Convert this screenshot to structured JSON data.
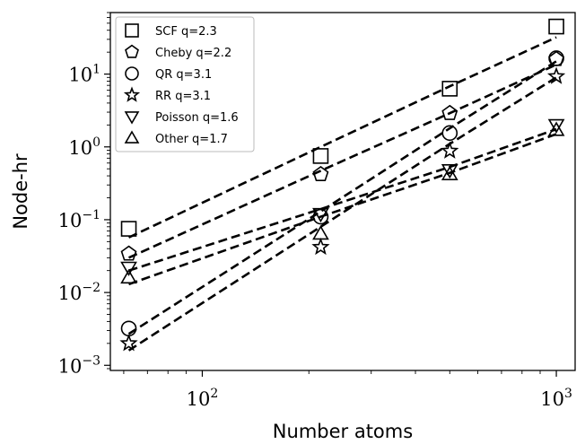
{
  "chart_data": {
    "type": "line",
    "xlabel": "Number atoms",
    "ylabel": "Node-hr",
    "xscale": "log",
    "yscale": "log",
    "xlim": [
      55,
      1130
    ],
    "ylim": [
      0.00085,
      70
    ],
    "xticks": [
      {
        "value": 100,
        "base": "10",
        "exp": "2"
      },
      {
        "value": 1000,
        "base": "10",
        "exp": "3"
      }
    ],
    "yticks": [
      {
        "value": 0.001,
        "base": "10",
        "exp": "−3"
      },
      {
        "value": 0.01,
        "base": "10",
        "exp": "−2"
      },
      {
        "value": 0.1,
        "base": "10",
        "exp": "−1"
      },
      {
        "value": 1,
        "base": "10",
        "exp": "0"
      },
      {
        "value": 10,
        "base": "10",
        "exp": "1"
      }
    ],
    "grid": false,
    "legend": "top-left",
    "line_style": "dashed",
    "x": [
      62,
      216,
      500,
      1000
    ],
    "series": [
      {
        "name": "SCF q=2.3",
        "marker": "square",
        "values": [
          0.075,
          0.75,
          6.3,
          45
        ],
        "fit": [
          0.057,
          1.0,
          6.8,
          32
        ]
      },
      {
        "name": "Cheby q=2.2",
        "marker": "pentagon",
        "values": [
          0.034,
          0.42,
          2.9,
          16
        ],
        "fit": [
          0.03,
          0.47,
          2.9,
          13.5
        ]
      },
      {
        "name": "QR q=3.1",
        "marker": "circle",
        "values": [
          0.0032,
          0.11,
          1.55,
          16.5
        ],
        "fit": [
          0.0027,
          0.13,
          1.8,
          15.0
        ]
      },
      {
        "name": "RR q=3.1",
        "marker": "star",
        "values": [
          0.002,
          0.042,
          0.88,
          9.3
        ],
        "fit": [
          0.0016,
          0.08,
          1.1,
          9.0
        ]
      },
      {
        "name": "Poisson q=1.6",
        "marker": "triangle-down",
        "values": [
          0.022,
          0.12,
          0.48,
          2.0
        ],
        "fit": [
          0.02,
          0.14,
          0.53,
          1.75
        ]
      },
      {
        "name": "Other q=1.7",
        "marker": "triangle-up",
        "values": [
          0.016,
          0.064,
          0.42,
          1.7
        ],
        "fit": [
          0.013,
          0.11,
          0.44,
          1.5
        ]
      }
    ]
  }
}
